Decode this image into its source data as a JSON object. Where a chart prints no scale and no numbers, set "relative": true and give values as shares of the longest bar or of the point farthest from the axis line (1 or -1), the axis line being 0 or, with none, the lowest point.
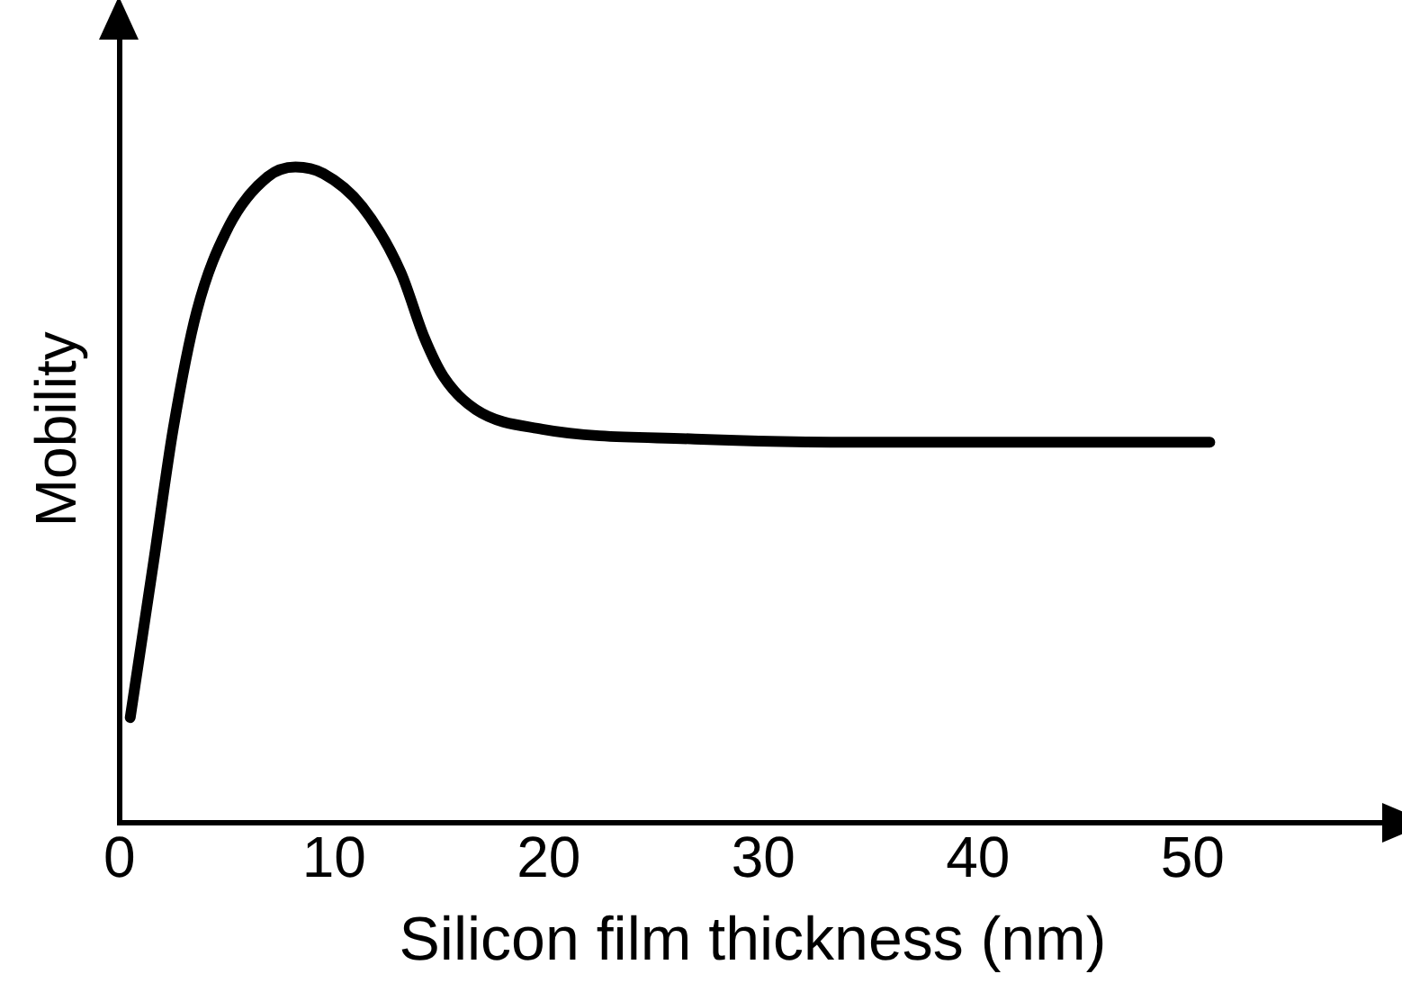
{
  "chart_data": {
    "type": "line",
    "xlabel": "Silicon film thickness (nm)",
    "ylabel": "Mobility",
    "relative": true,
    "xlim": [
      0,
      59
    ],
    "xticks": [
      0,
      10,
      20,
      30,
      40,
      50
    ],
    "grid": false,
    "legend": false,
    "marker": "none",
    "line_style": "solid",
    "series": [
      {
        "color": "#000000",
        "x": [
          0.5,
          1.6,
          2.5,
          3.6,
          5.1,
          6.9,
          8.2,
          9.5,
          11.3,
          13.1,
          14.2,
          15.1,
          16.6,
          19.7,
          26.8,
          35.6,
          44.5,
          50.8
        ],
        "values": [
          0.16,
          0.4,
          0.6,
          0.78,
          0.91,
          0.985,
          1,
          0.99,
          0.94,
          0.84,
          0.74,
          0.68,
          0.63,
          0.6,
          0.585,
          0.58,
          0.58,
          0.58
        ]
      }
    ]
  }
}
